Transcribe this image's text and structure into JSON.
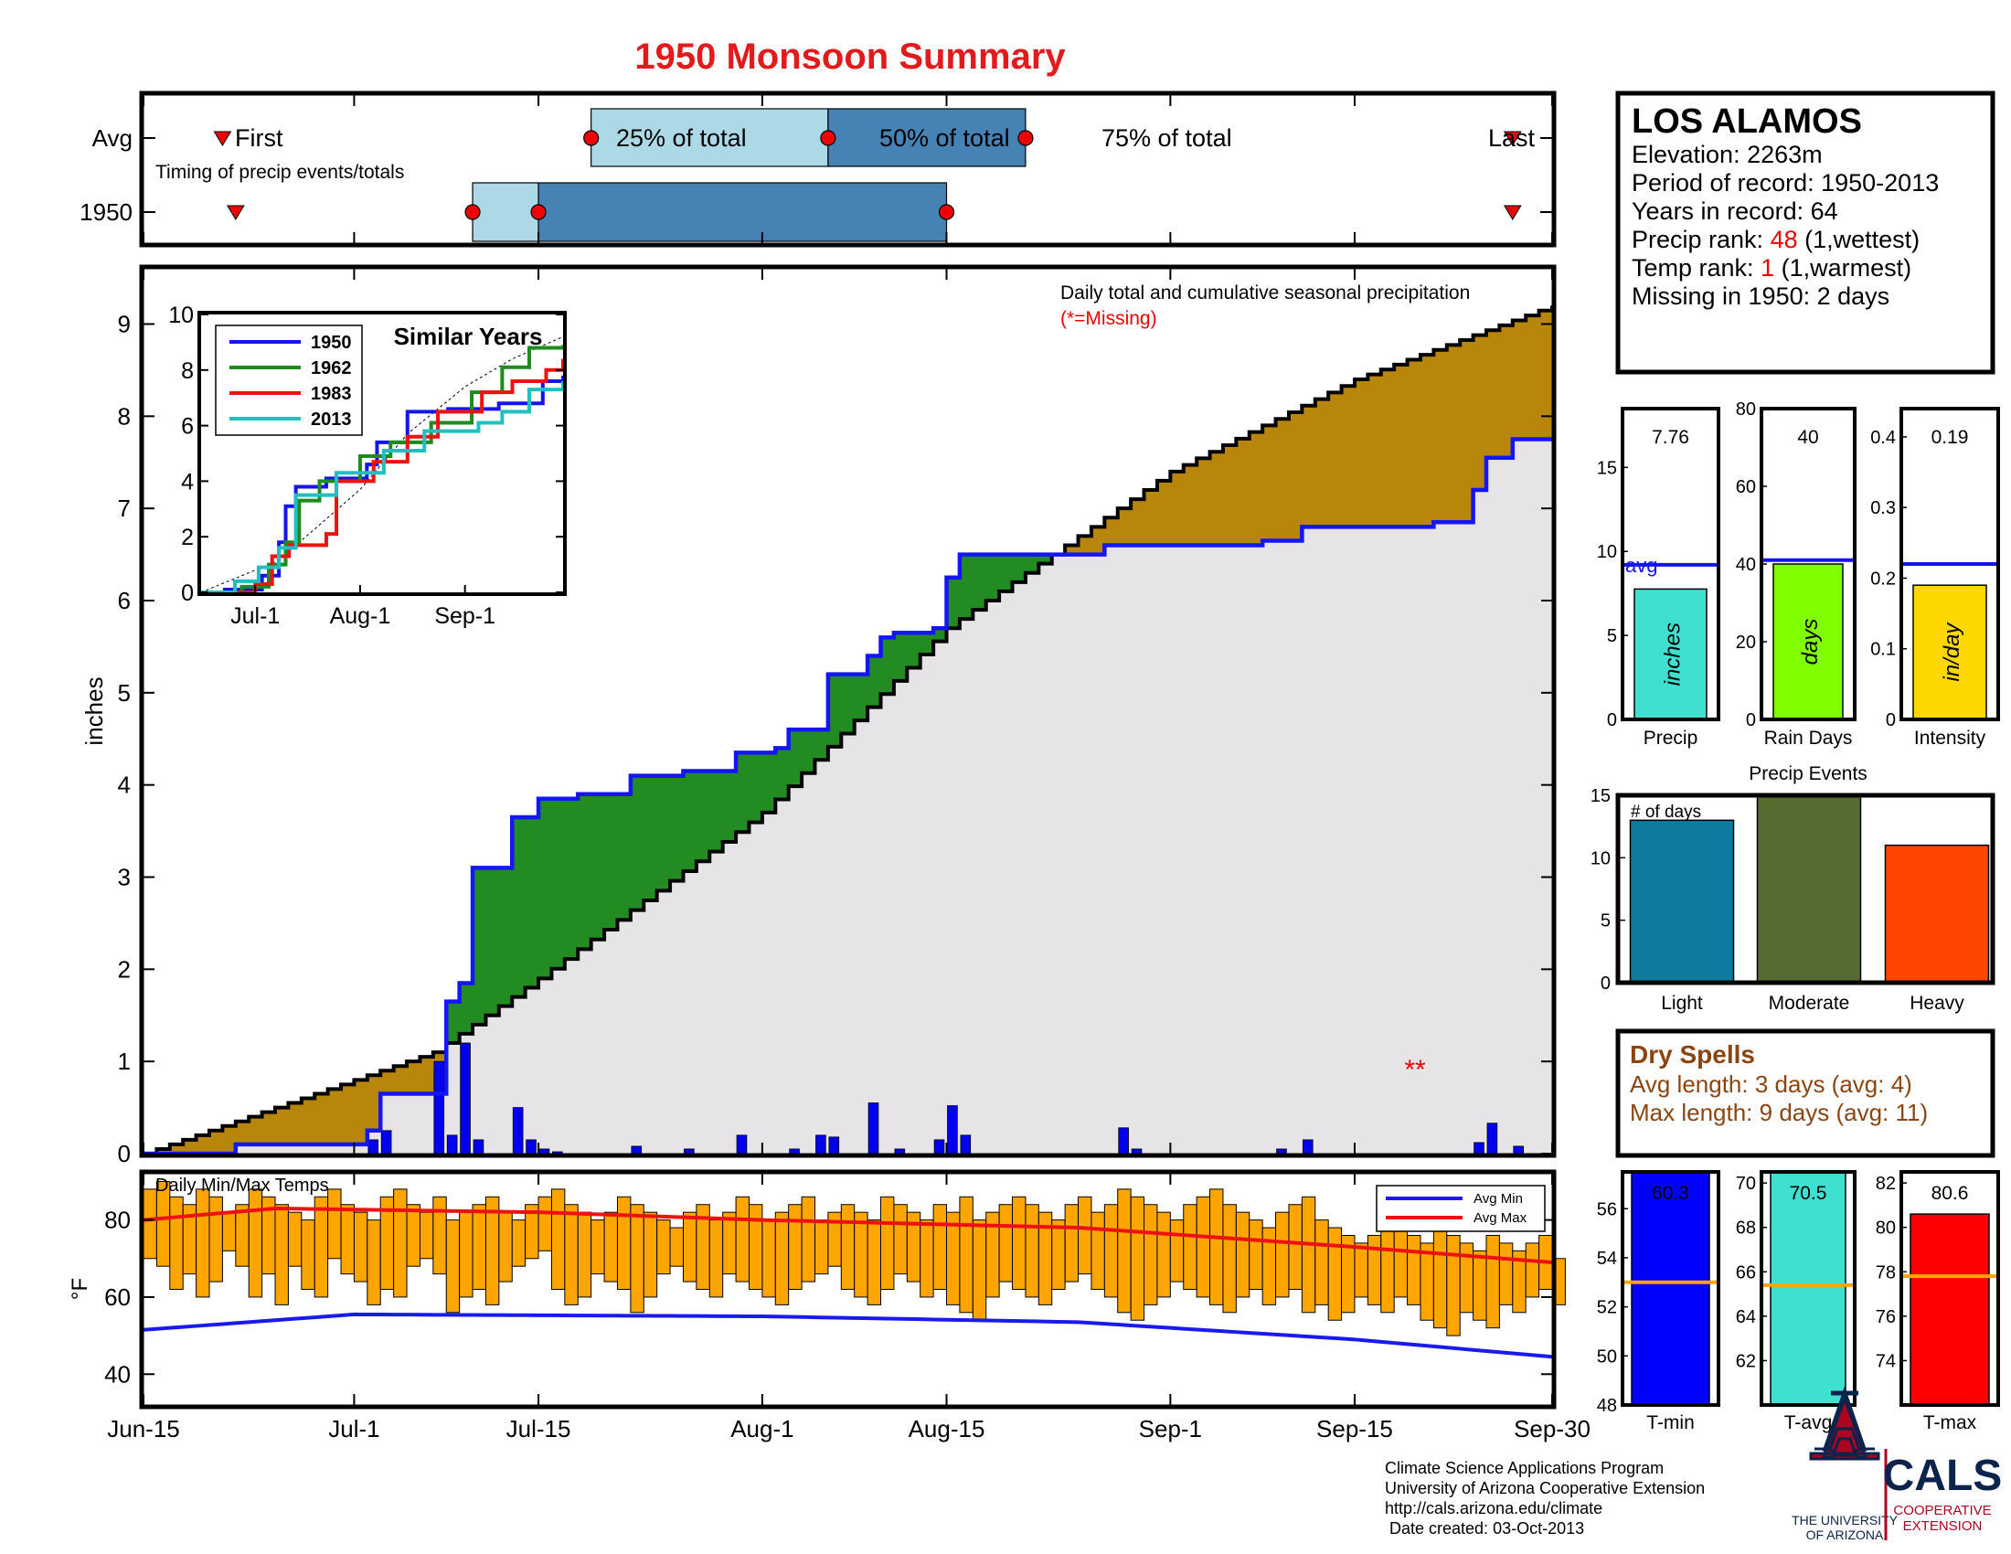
{
  "title": "1950 Monsoon Summary",
  "colors": {
    "title": "#e31a1c",
    "above_avg_fill": "#228b22",
    "below_avg_fill": "#b8860b",
    "avg_area_fill": "#e6e4e6",
    "observed_line": "#1414ff",
    "daily_bar": "#0000ee",
    "temp_bar": "#ffa500",
    "avg_min_line": "#1a1aee",
    "avg_max_line": "#ee1111",
    "timing_light": "#add8e6",
    "timing_dark": "#4682b4",
    "marker": "#ee0000",
    "dry_spells": "#8b4513",
    "rank_highlight": "#ee0000"
  },
  "timing": {
    "row_avg_label": "Avg",
    "row_year_label": "1950",
    "first_label": "First",
    "last_label": "Last",
    "pct25_label": "25% of total",
    "pct50_label": "50% of total",
    "pct75_label": "75% of total",
    "subtitle": "Timing of precip events/totals",
    "avg": {
      "first": "Jun-21",
      "p25": "Jul-19",
      "p50": "Aug-6",
      "p75": "Aug-21",
      "last": "Sep-27"
    },
    "year": {
      "first": "Jun-22",
      "p25": "Jul-10",
      "p50": "Jul-15",
      "p75": "Aug-15",
      "last": "Sep-27"
    }
  },
  "station": {
    "name": "LOS ALAMOS",
    "elevation": "Elevation: 2263m",
    "period": "Period of record: 1950-2013",
    "years": "Years in record: 64",
    "precip_rank_prefix": "Precip rank: ",
    "precip_rank_value": "48",
    "precip_rank_suffix": " (1,wettest)",
    "temp_rank_prefix": "Temp rank: ",
    "temp_rank_value": "1",
    "temp_rank_suffix": " (1,warmest)",
    "missing": "Missing in 1950: 2 days"
  },
  "dry_spells": {
    "title": "Dry Spells",
    "avg_length": "Avg length: 3 days (avg: 4)",
    "max_length": "Max length: 9 days (avg: 11)"
  },
  "precip_events_title": "Precip Events",
  "footer": {
    "line1": "Climate Science Applications Program",
    "line2": "University of Arizona Cooperative Extension",
    "line3": "http://cals.arizona.edu/climate",
    "line4": " Date created: 03-Oct-2013",
    "logo_ua_text1": "THE UNIVERSITY",
    "logo_ua_text2": "OF ARIZONA",
    "logo_cals": "CALS",
    "logo_coop1": "COOPERATIVE",
    "logo_coop2": "EXTENSION"
  },
  "chart_data": [
    {
      "id": "cumulative",
      "type": "area",
      "title": "Daily total and cumulative seasonal precipitation",
      "subtitle": "(*=Missing)",
      "ylabel": "inches",
      "ylim": [
        0,
        9.6
      ],
      "yticks": [
        0,
        1,
        2,
        3,
        4,
        5,
        6,
        7,
        8,
        9
      ],
      "x_range": [
        "Jun-15",
        "Sep-30"
      ],
      "xticks": [
        "Jun-15",
        "Jul-1",
        "Jul-15",
        "Aug-1",
        "Aug-15",
        "Sep-1",
        "Sep-15",
        "Sep-30"
      ],
      "missing_marker": "**",
      "missing_dates": [
        "Sep-22",
        "Sep-23"
      ],
      "series": [
        {
          "name": "avg cumulative",
          "style": "staircase",
          "x": [
            "Jun-15",
            "Jul-7",
            "Jul-15",
            "Aug-1",
            "Aug-15",
            "Sep-1",
            "Sep-15",
            "Sep-30"
          ],
          "values": [
            0.0,
            1.1,
            1.9,
            3.7,
            5.7,
            7.4,
            8.4,
            9.2
          ]
        },
        {
          "name": "1950",
          "x": [
            "Jun-15",
            "Jun-22",
            "Jul-1",
            "Jul-2",
            "Jul-3",
            "Jul-7",
            "Jul-8",
            "Jul-9",
            "Jul-10",
            "Jul-12",
            "Jul-13",
            "Jul-15",
            "Jul-18",
            "Jul-22",
            "Jul-26",
            "Jul-30",
            "Aug-2",
            "Aug-3",
            "Aug-5",
            "Aug-6",
            "Aug-9",
            "Aug-10",
            "Aug-11",
            "Aug-14",
            "Aug-15",
            "Aug-16",
            "Aug-26",
            "Aug-27",
            "Sep-8",
            "Sep-11",
            "Sep-21",
            "Sep-24",
            "Sep-25",
            "Sep-27",
            "Sep-30"
          ],
          "values": [
            0.0,
            0.1,
            0.1,
            0.25,
            0.65,
            0.65,
            1.65,
            1.85,
            3.1,
            3.1,
            3.65,
            3.85,
            3.9,
            4.1,
            4.15,
            4.35,
            4.4,
            4.6,
            4.6,
            5.2,
            5.4,
            5.6,
            5.65,
            5.7,
            6.25,
            6.5,
            6.5,
            6.6,
            6.65,
            6.8,
            6.85,
            7.2,
            7.55,
            7.75,
            7.76
          ]
        }
      ],
      "daily_bars": {
        "dates": [
          "Jul-2",
          "Jul-3",
          "Jul-7",
          "Jul-8",
          "Jul-9",
          "Jul-10",
          "Jul-13",
          "Jul-14",
          "Jul-15",
          "Jul-16",
          "Jul-22",
          "Jul-26",
          "Jul-30",
          "Aug-3",
          "Aug-5",
          "Aug-6",
          "Aug-9",
          "Aug-11",
          "Aug-14",
          "Aug-15",
          "Aug-16",
          "Aug-28",
          "Aug-29",
          "Sep-9",
          "Sep-11",
          "Sep-24",
          "Sep-25",
          "Sep-27"
        ],
        "values": [
          0.15,
          0.25,
          1.0,
          0.2,
          1.2,
          0.15,
          0.5,
          0.15,
          0.05,
          0.02,
          0.08,
          0.05,
          0.2,
          0.05,
          0.2,
          0.18,
          0.55,
          0.05,
          0.15,
          0.52,
          0.2,
          0.28,
          0.05,
          0.05,
          0.15,
          0.12,
          0.33,
          0.08
        ]
      }
    },
    {
      "id": "similar_years",
      "type": "line",
      "title": "Similar Years",
      "ylim": [
        0,
        10
      ],
      "yticks": [
        0,
        2,
        4,
        6,
        8,
        10
      ],
      "xticks": [
        "Jul-1",
        "Aug-1",
        "Sep-1"
      ],
      "series": [
        {
          "name": "1950",
          "color": "#1414ee",
          "x": [
            "Jun-15",
            "Jun-22",
            "Jul-3",
            "Jul-8",
            "Jul-10",
            "Jul-13",
            "Jul-22",
            "Aug-3",
            "Aug-6",
            "Aug-15",
            "Aug-27",
            "Sep-11",
            "Sep-24",
            "Sep-30"
          ],
          "values": [
            0,
            0.1,
            0.6,
            1.8,
            3.1,
            3.8,
            4.1,
            4.6,
            5.4,
            6.5,
            6.6,
            6.8,
            7.6,
            7.8
          ]
        },
        {
          "name": "1962",
          "color": "#1e8b1e",
          "x": [
            "Jun-15",
            "Jun-27",
            "Jul-5",
            "Jul-10",
            "Jul-14",
            "Jul-20",
            "Aug-1",
            "Aug-10",
            "Aug-22",
            "Sep-3",
            "Sep-12",
            "Sep-20",
            "Sep-30"
          ],
          "values": [
            0,
            0.2,
            1.0,
            1.8,
            3.3,
            4.0,
            4.9,
            5.4,
            6.1,
            7.2,
            8.1,
            8.8,
            8.9
          ]
        },
        {
          "name": "1983",
          "color": "#ee1111",
          "x": [
            "Jun-15",
            "Jul-1",
            "Jul-6",
            "Jul-11",
            "Jul-22",
            "Jul-25",
            "Aug-5",
            "Aug-15",
            "Aug-24",
            "Sep-6",
            "Sep-15",
            "Sep-25",
            "Sep-30"
          ],
          "values": [
            0,
            0.3,
            1.3,
            1.7,
            2.1,
            4.0,
            4.7,
            5.6,
            6.5,
            7.2,
            7.6,
            8.0,
            8.4
          ]
        },
        {
          "name": "2013",
          "color": "#20c0c0",
          "x": [
            "Jun-15",
            "Jun-25",
            "Jul-2",
            "Jul-8",
            "Jul-13",
            "Jul-25",
            "Aug-8",
            "Aug-20",
            "Sep-5",
            "Sep-12",
            "Sep-20",
            "Sep-30"
          ],
          "values": [
            0,
            0.4,
            0.9,
            1.6,
            3.5,
            4.3,
            5.1,
            5.8,
            6.1,
            6.5,
            7.3,
            7.6
          ]
        }
      ]
    },
    {
      "id": "summary_bars",
      "type": "bar",
      "avg_label": "avg",
      "panels": [
        {
          "name": "Precip",
          "unit": "inches",
          "value": 7.76,
          "value_label": "7.76",
          "avg": 9.2,
          "ylim": [
            0,
            18.5
          ],
          "yticks": [
            0,
            5,
            10,
            15
          ],
          "color": "#40e0d0"
        },
        {
          "name": "Rain Days",
          "unit": "days",
          "value": 40,
          "value_label": "40",
          "avg": 41,
          "ylim": [
            0,
            80
          ],
          "yticks": [
            0,
            20,
            40,
            60,
            80
          ],
          "color": "#7fff00"
        },
        {
          "name": "Intensity",
          "unit": "in/day",
          "value": 0.19,
          "value_label": "0.19",
          "avg": 0.22,
          "ylim": [
            0,
            0.44
          ],
          "yticks": [
            0,
            0.1,
            0.2,
            0.3,
            0.4
          ],
          "color": "#ffd700"
        }
      ]
    },
    {
      "id": "precip_events",
      "type": "bar",
      "title": "Precip Events",
      "ylabel": "# of days",
      "ylim": [
        0,
        15
      ],
      "yticks": [
        0,
        5,
        10,
        15
      ],
      "categories": [
        "Light",
        "Moderate",
        "Heavy"
      ],
      "values": [
        13,
        15,
        11
      ],
      "colors": [
        "#0e7aa0",
        "#556b2f",
        "#ff4500"
      ]
    },
    {
      "id": "daily_temps",
      "type": "bar",
      "title": "Daily Min/Max Temps",
      "ylabel": "°F",
      "ylim": [
        32,
        92
      ],
      "yticks": [
        40,
        60,
        80
      ],
      "legend": [
        "Avg Min",
        "Avg Max"
      ],
      "legend_position": "top-right",
      "avg_min": {
        "x": [
          "Jun-15",
          "Jul-1",
          "Aug-1",
          "Aug-25",
          "Sep-15",
          "Sep-30"
        ],
        "values": [
          51.5,
          55.5,
          55.0,
          53.5,
          49.0,
          44.5
        ]
      },
      "avg_max": {
        "x": [
          "Jun-15",
          "Jun-25",
          "Jul-15",
          "Aug-1",
          "Aug-25",
          "Sep-15",
          "Sep-30"
        ],
        "values": [
          80,
          83,
          82,
          80,
          78,
          73,
          69
        ]
      },
      "daily_min": [
        70,
        68,
        62,
        66,
        60,
        64,
        72,
        68,
        60,
        66,
        58,
        68,
        62,
        60,
        70,
        66,
        64,
        58,
        62,
        60,
        68,
        70,
        66,
        56,
        60,
        62,
        58,
        64,
        68,
        70,
        72,
        62,
        58,
        60,
        66,
        64,
        62,
        56,
        60,
        66,
        68,
        64,
        62,
        60,
        66,
        64,
        62,
        60,
        58,
        62,
        64,
        66,
        68,
        62,
        60,
        58,
        62,
        66,
        64,
        60,
        62,
        58,
        56,
        54,
        60,
        64,
        62,
        60,
        58,
        62,
        64,
        66,
        62,
        60,
        56,
        54,
        58,
        60,
        64,
        62,
        60,
        58,
        56,
        60,
        62,
        58,
        60,
        62,
        56,
        58,
        54,
        56,
        60,
        58,
        56,
        60,
        58,
        54,
        52,
        50,
        56,
        54,
        52,
        58,
        56,
        60,
        62,
        58
      ],
      "daily_max": [
        88,
        90,
        86,
        84,
        88,
        86,
        82,
        84,
        88,
        86,
        84,
        82,
        80,
        86,
        88,
        84,
        82,
        80,
        86,
        88,
        84,
        82,
        86,
        80,
        82,
        84,
        86,
        82,
        80,
        84,
        86,
        88,
        84,
        82,
        80,
        82,
        86,
        84,
        82,
        80,
        78,
        82,
        84,
        80,
        82,
        86,
        84,
        80,
        82,
        84,
        86,
        80,
        82,
        84,
        82,
        80,
        86,
        84,
        82,
        80,
        84,
        82,
        86,
        80,
        82,
        84,
        86,
        84,
        82,
        80,
        84,
        86,
        82,
        84,
        88,
        86,
        84,
        82,
        80,
        84,
        86,
        88,
        84,
        82,
        80,
        78,
        82,
        84,
        86,
        80,
        78,
        76,
        74,
        76,
        80,
        78,
        76,
        74,
        78,
        76,
        74,
        72,
        76,
        74,
        72,
        74,
        76,
        70
      ]
    },
    {
      "id": "temp_summary",
      "type": "bar",
      "panels": [
        {
          "name": "T-min",
          "value": 60.3,
          "value_label": "60.3",
          "avg": 53,
          "ylim": [
            48,
            57.5
          ],
          "yticks": [
            48,
            50,
            52,
            54,
            56
          ],
          "color": "#0000ff"
        },
        {
          "name": "T-avg",
          "value": 70.5,
          "value_label": "70.5",
          "avg": 65.4,
          "ylim": [
            60,
            70.5
          ],
          "yticks": [
            62,
            64,
            66,
            68,
            70
          ],
          "color": "#40e0d0"
        },
        {
          "name": "T-max",
          "value": 80.6,
          "value_label": "80.6",
          "avg": 77.8,
          "ylim": [
            72,
            82.5
          ],
          "yticks": [
            74,
            76,
            78,
            80,
            82
          ],
          "color": "#ff0000"
        }
      ]
    }
  ]
}
